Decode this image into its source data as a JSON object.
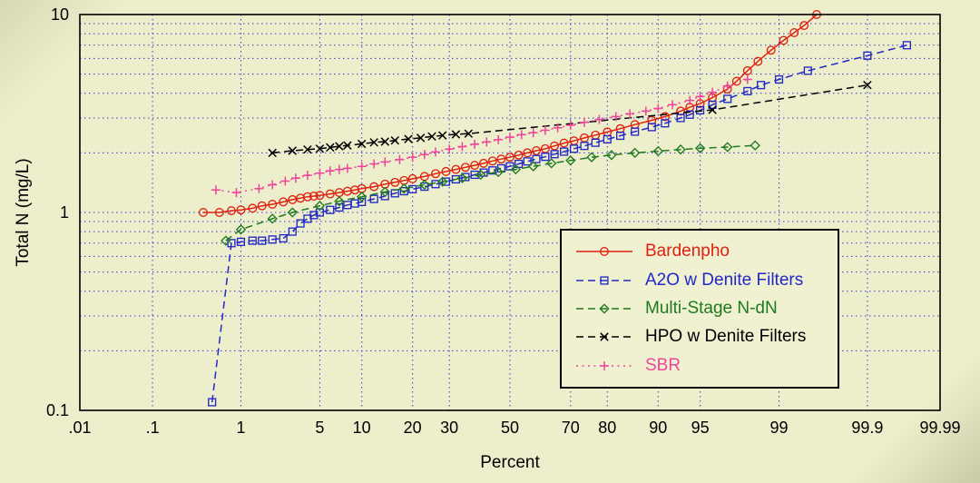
{
  "page": {
    "background": "#edeecb",
    "grid_color": "#3a3ad0",
    "frame_color": "#000000",
    "legend_background": "#f0f1d1",
    "text_color": "#000000"
  },
  "chart_data": {
    "type": "line",
    "title": "",
    "xlabel": "Percent",
    "ylabel": "Total N (mg/L)",
    "x_scale": "probit-percent",
    "y_scale": "log",
    "xlim": [
      0.01,
      99.99
    ],
    "ylim": [
      0.1,
      10
    ],
    "grid": "dotted-blue",
    "legend_position": "inside-lower-right",
    "x_ticks": [
      {
        "value": 0.01,
        "label": ".01"
      },
      {
        "value": 0.1,
        "label": ".1"
      },
      {
        "value": 1,
        "label": "1"
      },
      {
        "value": 5,
        "label": "5"
      },
      {
        "value": 10,
        "label": "10"
      },
      {
        "value": 20,
        "label": "20"
      },
      {
        "value": 30,
        "label": "30"
      },
      {
        "value": 50,
        "label": "50"
      },
      {
        "value": 70,
        "label": "70"
      },
      {
        "value": 80,
        "label": "80"
      },
      {
        "value": 90,
        "label": "90"
      },
      {
        "value": 95,
        "label": "95"
      },
      {
        "value": 99,
        "label": "99"
      },
      {
        "value": 99.9,
        "label": "99.9"
      },
      {
        "value": 99.99,
        "label": "99.99"
      }
    ],
    "y_ticks": [
      {
        "value": 10,
        "label": "10"
      },
      {
        "value": 1,
        "label": "1"
      },
      {
        "value": 0.1,
        "label": "0.1"
      }
    ],
    "series": [
      {
        "name": "Bardenpho",
        "color": "#e02010",
        "marker": "circle",
        "line": "solid",
        "points": [
          [
            0.4,
            1.0
          ],
          [
            0.6,
            1.0
          ],
          [
            0.8,
            1.02
          ],
          [
            1,
            1.03
          ],
          [
            1.3,
            1.05
          ],
          [
            1.6,
            1.08
          ],
          [
            2,
            1.1
          ],
          [
            2.5,
            1.13
          ],
          [
            3,
            1.16
          ],
          [
            3.5,
            1.18
          ],
          [
            4,
            1.2
          ],
          [
            4.5,
            1.21
          ],
          [
            5,
            1.22
          ],
          [
            6,
            1.24
          ],
          [
            7,
            1.26
          ],
          [
            8,
            1.28
          ],
          [
            9,
            1.3
          ],
          [
            10,
            1.32
          ],
          [
            12,
            1.35
          ],
          [
            14,
            1.39
          ],
          [
            16,
            1.42
          ],
          [
            18,
            1.45
          ],
          [
            20,
            1.48
          ],
          [
            23,
            1.52
          ],
          [
            26,
            1.57
          ],
          [
            29,
            1.61
          ],
          [
            32,
            1.65
          ],
          [
            35,
            1.69
          ],
          [
            38,
            1.73
          ],
          [
            41,
            1.77
          ],
          [
            44,
            1.82
          ],
          [
            47,
            1.86
          ],
          [
            50,
            1.9
          ],
          [
            53,
            1.95
          ],
          [
            56,
            2.0
          ],
          [
            59,
            2.05
          ],
          [
            62,
            2.1
          ],
          [
            65,
            2.17
          ],
          [
            68,
            2.24
          ],
          [
            71,
            2.3
          ],
          [
            74,
            2.38
          ],
          [
            77,
            2.46
          ],
          [
            80,
            2.55
          ],
          [
            83,
            2.65
          ],
          [
            86,
            2.78
          ],
          [
            89,
            2.92
          ],
          [
            91,
            3.05
          ],
          [
            93,
            3.25
          ],
          [
            94,
            3.4
          ],
          [
            95,
            3.55
          ],
          [
            96,
            3.8
          ],
          [
            97,
            4.2
          ],
          [
            97.5,
            4.6
          ],
          [
            98,
            5.2
          ],
          [
            98.4,
            5.8
          ],
          [
            98.8,
            6.6
          ],
          [
            99.1,
            7.4
          ],
          [
            99.3,
            8.1
          ],
          [
            99.45,
            8.8
          ],
          [
            99.6,
            10.0
          ]
        ]
      },
      {
        "name": "A2O w Denite Filters",
        "color": "#2228c8",
        "marker": "square",
        "line": "dashed",
        "points": [
          [
            0.5,
            0.11
          ],
          [
            0.8,
            0.7
          ],
          [
            1.0,
            0.71
          ],
          [
            1.3,
            0.72
          ],
          [
            1.6,
            0.72
          ],
          [
            2,
            0.73
          ],
          [
            2.5,
            0.74
          ],
          [
            3,
            0.8
          ],
          [
            3.5,
            0.88
          ],
          [
            4,
            0.93
          ],
          [
            4.5,
            0.97
          ],
          [
            5,
            1.0
          ],
          [
            6,
            1.03
          ],
          [
            7,
            1.06
          ],
          [
            8,
            1.09
          ],
          [
            9,
            1.11
          ],
          [
            10,
            1.13
          ],
          [
            12,
            1.17
          ],
          [
            14,
            1.21
          ],
          [
            16,
            1.25
          ],
          [
            18,
            1.28
          ],
          [
            20,
            1.31
          ],
          [
            23,
            1.35
          ],
          [
            26,
            1.39
          ],
          [
            29,
            1.43
          ],
          [
            32,
            1.47
          ],
          [
            35,
            1.51
          ],
          [
            38,
            1.55
          ],
          [
            41,
            1.59
          ],
          [
            44,
            1.63
          ],
          [
            47,
            1.67
          ],
          [
            50,
            1.71
          ],
          [
            53,
            1.76
          ],
          [
            56,
            1.81
          ],
          [
            59,
            1.86
          ],
          [
            62,
            1.91
          ],
          [
            65,
            1.97
          ],
          [
            68,
            2.03
          ],
          [
            71,
            2.1
          ],
          [
            74,
            2.17
          ],
          [
            77,
            2.25
          ],
          [
            80,
            2.34
          ],
          [
            83,
            2.44
          ],
          [
            86,
            2.56
          ],
          [
            89,
            2.7
          ],
          [
            91,
            2.82
          ],
          [
            93,
            3.0
          ],
          [
            94,
            3.12
          ],
          [
            95,
            3.28
          ],
          [
            96,
            3.5
          ],
          [
            97,
            3.75
          ],
          [
            98,
            4.1
          ],
          [
            98.5,
            4.4
          ],
          [
            99,
            4.7
          ],
          [
            99.5,
            5.2
          ],
          [
            99.9,
            6.2
          ],
          [
            99.97,
            7.0
          ]
        ]
      },
      {
        "name": "Multi-Stage N-dN",
        "color": "#1e7a1e",
        "marker": "diamond",
        "line": "dashed",
        "points": [
          [
            0.7,
            0.72
          ],
          [
            1,
            0.82
          ],
          [
            2,
            0.93
          ],
          [
            3,
            1.0
          ],
          [
            5,
            1.08
          ],
          [
            7,
            1.14
          ],
          [
            10,
            1.2
          ],
          [
            14,
            1.27
          ],
          [
            18,
            1.32
          ],
          [
            23,
            1.38
          ],
          [
            28,
            1.43
          ],
          [
            34,
            1.49
          ],
          [
            40,
            1.55
          ],
          [
            46,
            1.6
          ],
          [
            52,
            1.65
          ],
          [
            58,
            1.71
          ],
          [
            64,
            1.77
          ],
          [
            70,
            1.83
          ],
          [
            76,
            1.9
          ],
          [
            81,
            1.95
          ],
          [
            86,
            2.0
          ],
          [
            90,
            2.04
          ],
          [
            93,
            2.08
          ],
          [
            95,
            2.11
          ],
          [
            97,
            2.14
          ],
          [
            98.3,
            2.18
          ]
        ]
      },
      {
        "name": "HPO w Denite Filters",
        "color": "#000000",
        "marker": "x",
        "line": "dashed",
        "points": [
          [
            2,
            2.0
          ],
          [
            3,
            2.05
          ],
          [
            4,
            2.08
          ],
          [
            5,
            2.1
          ],
          [
            6,
            2.13
          ],
          [
            7,
            2.16
          ],
          [
            8,
            2.18
          ],
          [
            10,
            2.22
          ],
          [
            12,
            2.26
          ],
          [
            14,
            2.28
          ],
          [
            16,
            2.31
          ],
          [
            19,
            2.35
          ],
          [
            22,
            2.38
          ],
          [
            25,
            2.42
          ],
          [
            28,
            2.45
          ],
          [
            32,
            2.48
          ],
          [
            36,
            2.5
          ],
          [
            96,
            3.3
          ],
          [
            99.9,
            4.4
          ]
        ]
      },
      {
        "name": "SBR",
        "color": "#ee4499",
        "marker": "plus",
        "line": "dot",
        "points": [
          [
            0.55,
            1.3
          ],
          [
            0.9,
            1.26
          ],
          [
            1.5,
            1.32
          ],
          [
            2,
            1.38
          ],
          [
            2.6,
            1.44
          ],
          [
            3.2,
            1.49
          ],
          [
            4,
            1.54
          ],
          [
            5,
            1.58
          ],
          [
            6,
            1.62
          ],
          [
            7,
            1.65
          ],
          [
            8,
            1.67
          ],
          [
            10,
            1.71
          ],
          [
            12,
            1.76
          ],
          [
            14,
            1.8
          ],
          [
            17,
            1.85
          ],
          [
            20,
            1.9
          ],
          [
            23,
            1.96
          ],
          [
            26,
            2.02
          ],
          [
            30,
            2.09
          ],
          [
            34,
            2.15
          ],
          [
            38,
            2.21
          ],
          [
            42,
            2.27
          ],
          [
            46,
            2.33
          ],
          [
            50,
            2.4
          ],
          [
            54,
            2.47
          ],
          [
            58,
            2.53
          ],
          [
            62,
            2.6
          ],
          [
            66,
            2.68
          ],
          [
            70,
            2.76
          ],
          [
            74,
            2.85
          ],
          [
            78,
            2.95
          ],
          [
            82,
            3.05
          ],
          [
            85,
            3.15
          ],
          [
            88,
            3.25
          ],
          [
            90,
            3.35
          ],
          [
            92,
            3.5
          ],
          [
            94,
            3.68
          ],
          [
            95,
            3.85
          ],
          [
            96,
            4.05
          ],
          [
            97,
            4.35
          ],
          [
            98,
            4.7
          ]
        ]
      }
    ]
  }
}
